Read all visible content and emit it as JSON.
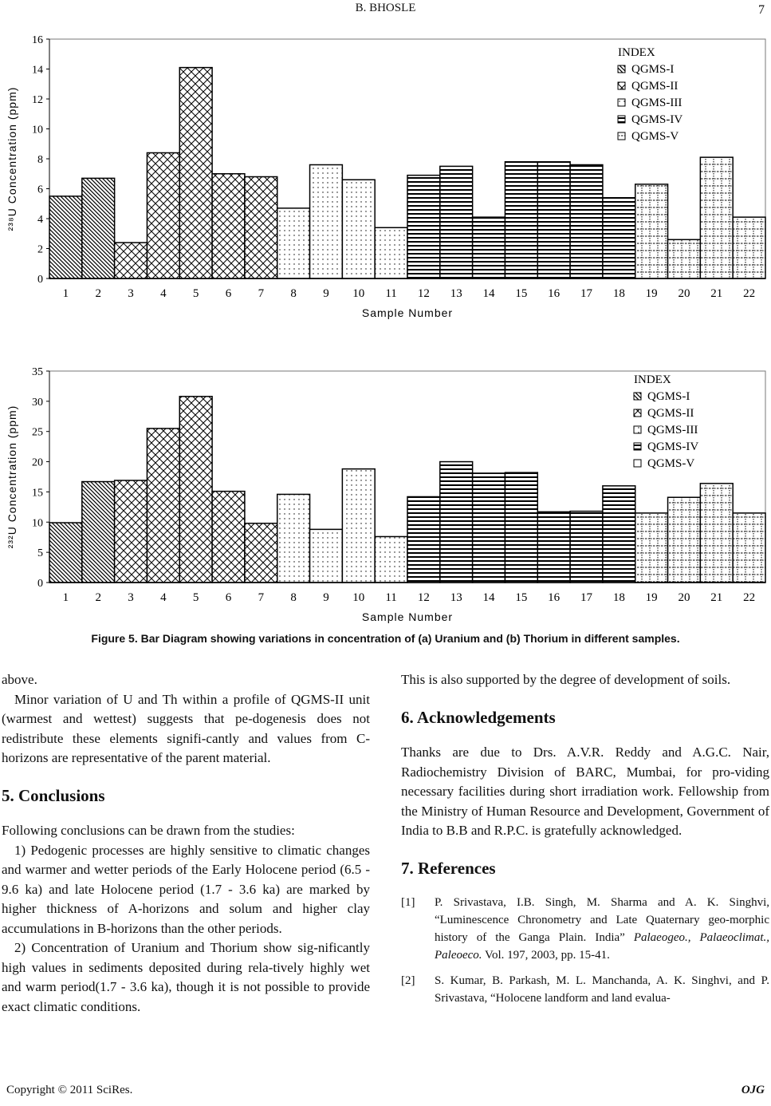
{
  "header": {
    "running_title": "B. BHOSLE",
    "page_number": "7"
  },
  "chart_data": [
    {
      "type": "bar",
      "title": "",
      "xlabel": "Sample Number",
      "ylabel": "²³⁸U Concentration (ppm)",
      "ylim": [
        0,
        16
      ],
      "yticks": [
        0,
        2,
        4,
        6,
        8,
        10,
        12,
        14,
        16
      ],
      "categories": [
        "1",
        "2",
        "3",
        "4",
        "5",
        "6",
        "7",
        "8",
        "9",
        "10",
        "11",
        "12",
        "13",
        "14",
        "15",
        "16",
        "17",
        "18",
        "19",
        "20",
        "21",
        "22"
      ],
      "values": [
        5.5,
        6.7,
        2.4,
        8.4,
        14.1,
        7.0,
        6.8,
        4.7,
        7.6,
        6.6,
        3.4,
        6.9,
        7.5,
        4.1,
        7.8,
        7.8,
        7.6,
        5.4,
        6.3,
        2.6,
        8.1,
        4.1
      ],
      "groups": [
        "QGMS-I",
        "QGMS-I",
        "QGMS-II",
        "QGMS-II",
        "QGMS-II",
        "QGMS-II",
        "QGMS-II",
        "QGMS-III",
        "QGMS-III",
        "QGMS-III",
        "QGMS-III",
        "QGMS-IV",
        "QGMS-IV",
        "QGMS-IV",
        "QGMS-IV",
        "QGMS-IV",
        "QGMS-IV",
        "QGMS-IV",
        "QGMS-V",
        "QGMS-V",
        "QGMS-V",
        "QGMS-V"
      ],
      "legend_title": "INDEX",
      "legend": [
        "QGMS-I",
        "QGMS-II",
        "QGMS-III",
        "QGMS-IV",
        "QGMS-V"
      ],
      "legend_position": "top-right",
      "grid": false
    },
    {
      "type": "bar",
      "title": "",
      "xlabel": "Sample Number",
      "ylabel": "²³²U Concentration (ppm)",
      "ylim": [
        0,
        35
      ],
      "yticks": [
        0,
        5,
        10,
        15,
        20,
        25,
        30,
        35
      ],
      "categories": [
        "1",
        "2",
        "3",
        "4",
        "5",
        "6",
        "7",
        "8",
        "9",
        "10",
        "11",
        "12",
        "13",
        "14",
        "15",
        "16",
        "17",
        "18",
        "19",
        "20",
        "21",
        "22"
      ],
      "values": [
        9.9,
        16.7,
        16.9,
        25.5,
        30.8,
        15.1,
        9.8,
        14.6,
        8.8,
        18.8,
        7.6,
        14.2,
        20.0,
        18.1,
        18.2,
        11.7,
        11.8,
        16.0,
        11.5,
        14.1,
        16.4,
        11.5
      ],
      "groups": [
        "QGMS-I",
        "QGMS-I",
        "QGMS-II",
        "QGMS-II",
        "QGMS-II",
        "QGMS-II",
        "QGMS-II",
        "QGMS-III",
        "QGMS-III",
        "QGMS-III",
        "QGMS-III",
        "QGMS-IV",
        "QGMS-IV",
        "QGMS-IV",
        "QGMS-IV",
        "QGMS-IV",
        "QGMS-IV",
        "QGMS-IV",
        "QGMS-V",
        "QGMS-V",
        "QGMS-V",
        "QGMS-V"
      ],
      "legend_title": "INDEX",
      "legend": [
        "QGMS-I",
        "QGMS-II",
        "QGMS-III",
        "QGMS-IV",
        "QGMS-V"
      ],
      "legend_position": "top-right",
      "grid": false
    }
  ],
  "caption": "Figure 5. Bar Diagram showing variations in concentration of (a) Uranium and (b) Thorium in different samples.",
  "left": {
    "p1": "above.",
    "p2": "Minor variation of U and Th within a profile of QGMS-II unit (warmest and wettest) suggests that pe-dogenesis does not redistribute these elements signifi-cantly and values from C-horizons are representative of the parent material.",
    "h5": "5. Conclusions",
    "p3": "Following conclusions can be drawn from the studies:",
    "p4": "1) Pedogenic processes are highly sensitive to climatic changes and warmer and wetter periods of the Early Holocene period (6.5 - 9.6 ka) and late Holocene period (1.7 - 3.6 ka) are marked by higher thickness of A-horizons and solum and higher clay accumulations in B-horizons than the other periods.",
    "p5": "2) Concentration of Uranium and Thorium show sig-nificantly high values in sediments deposited during rela-tively highly wet and warm period(1.7 - 3.6 ka), though it is not possible to provide exact climatic conditions."
  },
  "right": {
    "p1": "This is also supported by the degree of development of soils.",
    "h6": "6. Acknowledgements",
    "p2": "Thanks are due to Drs. A.V.R. Reddy and A.G.C. Nair, Radiochemistry Division of BARC, Mumbai, for pro-viding necessary facilities during short irradiation work. Fellowship from the Ministry of Human Resource and Development, Government of India to B.B and R.P.C. is gratefully acknowledged.",
    "h7": "7. References",
    "refs": [
      {
        "n": "[1]",
        "a": "P. Srivastava, I.B. Singh, M. Sharma and A. K. Singhvi, “Luminescence Chronometry and Late Quaternary geo-morphic history of the Ganga Plain. India” ",
        "j": "Palaeogeo., Palaeoclimat., Paleoeco.",
        "b": " Vol. 197, 2003, pp. 15-41."
      },
      {
        "n": "[2]",
        "a": "S. Kumar, B. Parkash, M. L. Manchanda, A. K. Singhvi, and P. Srivastava, “Holocene landform and land evalua-",
        "j": "",
        "b": ""
      }
    ]
  },
  "footer": {
    "copyright": "Copyright © 2011 SciRes.",
    "journal": "OJG"
  }
}
